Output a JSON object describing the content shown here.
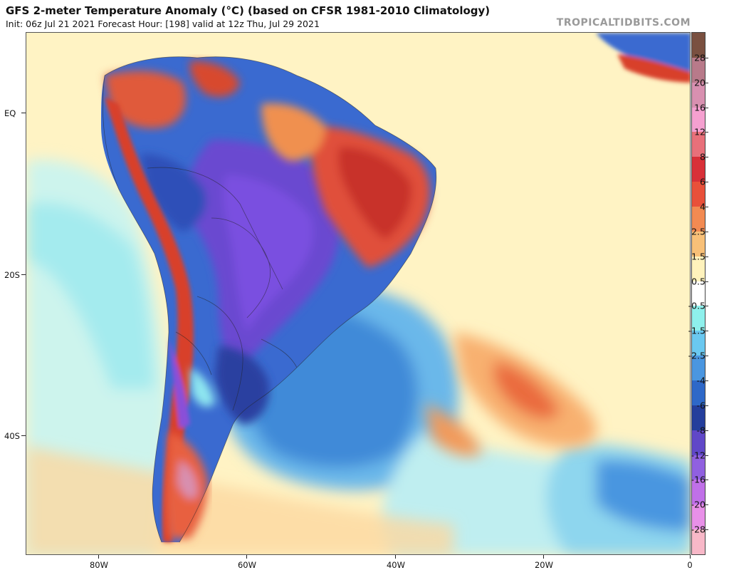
{
  "title": "GFS 2-meter Temperature Anomaly (°C) (based on CFSR 1981-2010 Climatology)",
  "subtitle": "Init: 06z Jul 21 2021   Forecast Hour: [198]   valid at 12z Thu, Jul 29 2021",
  "brand": "TROPICALTIDBITS.COM",
  "map": {
    "lat_labels": [
      "EQ",
      "20S",
      "40S"
    ],
    "lon_labels": [
      "80W",
      "60W",
      "40W",
      "20W",
      "0"
    ],
    "colors": {
      "ocean_neutral": "#fff3c4",
      "cold_light": "#8ee6f0",
      "cold_mid": "#4aa6e8",
      "cold_deep": "#2a55c4",
      "cold_purple": "#6a3fd0",
      "warm_orange": "#f08a48",
      "warm_red": "#d8402a"
    }
  },
  "colorbar": {
    "labels": [
      "28",
      "20",
      "16",
      "12",
      "8",
      "6",
      "4",
      "2.5",
      "1.5",
      "0.5",
      "-0.5",
      "-1.5",
      "-2.5",
      "-4",
      "-6",
      "-8",
      "-12",
      "-16",
      "-20",
      "-28"
    ],
    "colors": [
      "#7a5040",
      "#b87a8a",
      "#d890b0",
      "#f5a0d0",
      "#e8707a",
      "#d83038",
      "#e8503a",
      "#f28a52",
      "#f8c078",
      "#fff2bc",
      "#ffffff",
      "#8ef0ec",
      "#6ac8f0",
      "#4a96e0",
      "#2e68c8",
      "#243e9c",
      "#6048c8",
      "#9060e0",
      "#c070e8",
      "#e890e8",
      "#f8b8c8"
    ]
  }
}
